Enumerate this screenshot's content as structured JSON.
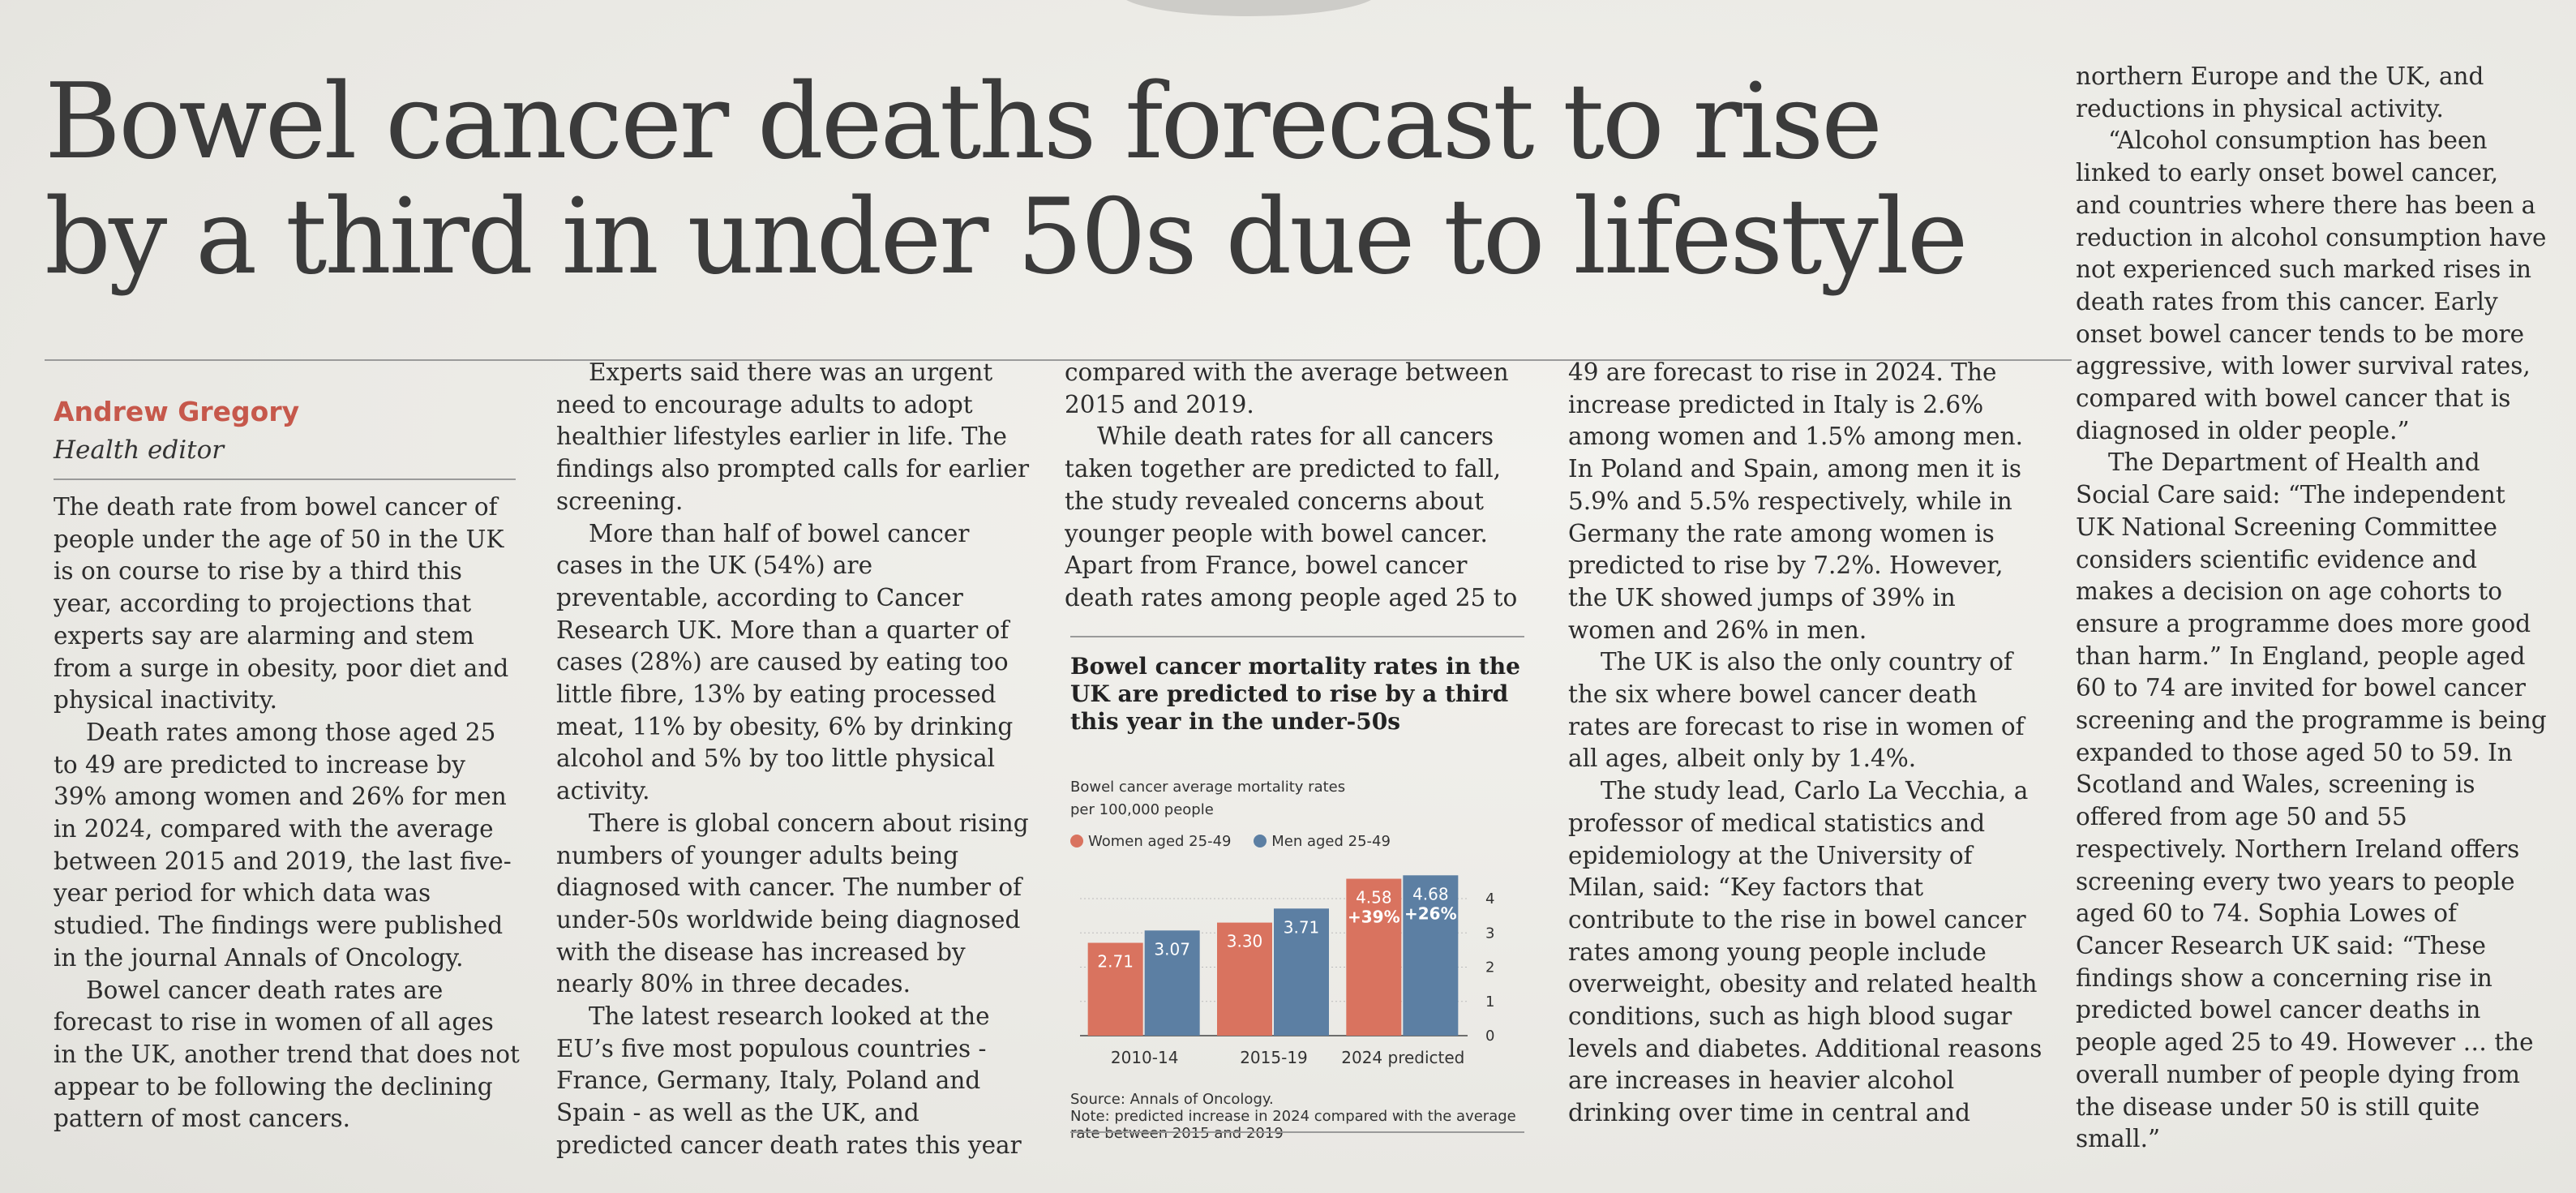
{
  "headline": {
    "line1": "Bowel cancer deaths forecast to rise",
    "line2": "by a third in under 50s due to lifestyle"
  },
  "byline": {
    "name": "Andrew Gregory",
    "role": "Health editor"
  },
  "columns": {
    "col1": [
      "The death rate from bowel cancer of people under the age of 50 in the UK is on course to rise by a third this year, according to projections that experts say are alarming and stem from a surge in obesity, poor diet and physical inactivity.",
      "Death rates among those aged 25 to 49 are predicted to increase by 39% among women and 26% for men in 2024, compared with the average between 2015 and 2019, the last five-year period for which data was studied. The findings were published in the journal Annals of Oncology.",
      "Bowel cancer death rates are forecast to rise in women of all ages in the UK, another trend that does not appear to be following the declining pattern of most cancers."
    ],
    "col2": [
      "Experts said there was an urgent need to encourage adults to adopt healthier lifestyles earlier in life. The findings also prompted calls for earlier screening.",
      "More than half of bowel cancer cases in the UK (54%) are preventable, according to Cancer Research UK. More than a quarter of cases (28%) are caused by eating too little fibre, 13% by eating processed meat, 11% by obesity, 6% by drinking alcohol and 5% by too little physical activity.",
      "There is global concern about rising numbers of younger adults being diagnosed with cancer. The number of under-50s worldwide being diagnosed with the disease has increased by nearly 80% in three decades.",
      "The latest research looked at the EU’s five most populous countries - France, Germany, Italy, Poland and Spain - as well as the UK, and predicted cancer death rates this year"
    ],
    "col3": [
      "compared with the average between 2015 and 2019.",
      "While death rates for all cancers taken together are predicted to fall, the study revealed concerns about younger people with bowel cancer. Apart from France, bowel cancer death rates among people aged 25 to"
    ],
    "col4": [
      "49 are forecast to rise in 2024. The increase predicted in Italy is 2.6% among women and 1.5% among men. In Poland and Spain, among men it is 5.9% and 5.5% respectively, while in Germany the rate among women is predicted to rise by 7.2%. However, the UK showed jumps of 39% in women and 26% in men.",
      "The UK is also the only country of the six where bowel cancer death rates are forecast to rise in women of all ages, albeit only by 1.4%.",
      "The study lead, Carlo La Vecchia, a professor of medical statistics and epidemiology at the University of Milan, said: “Key factors that contribute to the rise in bowel cancer rates among young people include overweight, obesity and related health conditions, such as high blood sugar levels and diabetes. Additional reasons are increases in heavier alcohol drinking over time in central and"
    ],
    "col5": [
      "northern Europe and the UK, and reductions in physical activity.",
      "“Alcohol consumption has been linked to early onset bowel cancer, and countries where there has been a reduction in alcohol consumption have not experienced such marked rises in death rates from this cancer. Early onset bowel cancer tends to be more aggressive, with lower survival rates, compared with bowel cancer that is diagnosed in older people.”",
      "The Department of Health and Social Care said: “The independent UK National Screening Committee considers scientific evidence and makes a decision on age cohorts to ensure a programme does more good than harm.” In England, people aged 60 to 74 are invited for bowel cancer screening and the programme is being expanded to those aged 50 to 59. In Scotland and Wales, screening is offered from age 50 and 55 respectively. Northern Ireland offers screening every two years to people aged 60 to 74. Sophia Lowes of Cancer Research UK said: “These findings show a concerning rise in predicted bowel cancer deaths in people aged 25 to 49. However … the overall number of people dying from the disease under 50 is still quite small.”"
    ]
  },
  "chart_data": {
    "type": "bar",
    "title": "Bowel cancer mortality rates in the UK are predicted to rise by a third this year in the under-50s",
    "subtitle_line1": "Bowel cancer average mortality rates",
    "subtitle_line2": "per 100,000 people",
    "categories": [
      "2010-14",
      "2015-19",
      "2024 predicted"
    ],
    "series": [
      {
        "name": "Women aged 25-49",
        "color": "#d9735f",
        "values": [
          2.71,
          3.3,
          4.58
        ],
        "labels": [
          "2.71",
          "3.30",
          "4.58"
        ]
      },
      {
        "name": "Men aged 25-49",
        "color": "#5c7fa3",
        "values": [
          3.07,
          3.71,
          4.68
        ],
        "labels": [
          "3.07",
          "3.71",
          "4.68"
        ]
      }
    ],
    "annotations": [
      "+39%",
      "+26%"
    ],
    "ylim": [
      0,
      4.9
    ],
    "yticks": [
      "0",
      "1",
      "2",
      "3",
      "4"
    ],
    "grid": true,
    "source": "Source: Annals of Oncology.",
    "note": "Note: predicted increase in 2024 compared with the average rate between 2015 and 2019"
  }
}
